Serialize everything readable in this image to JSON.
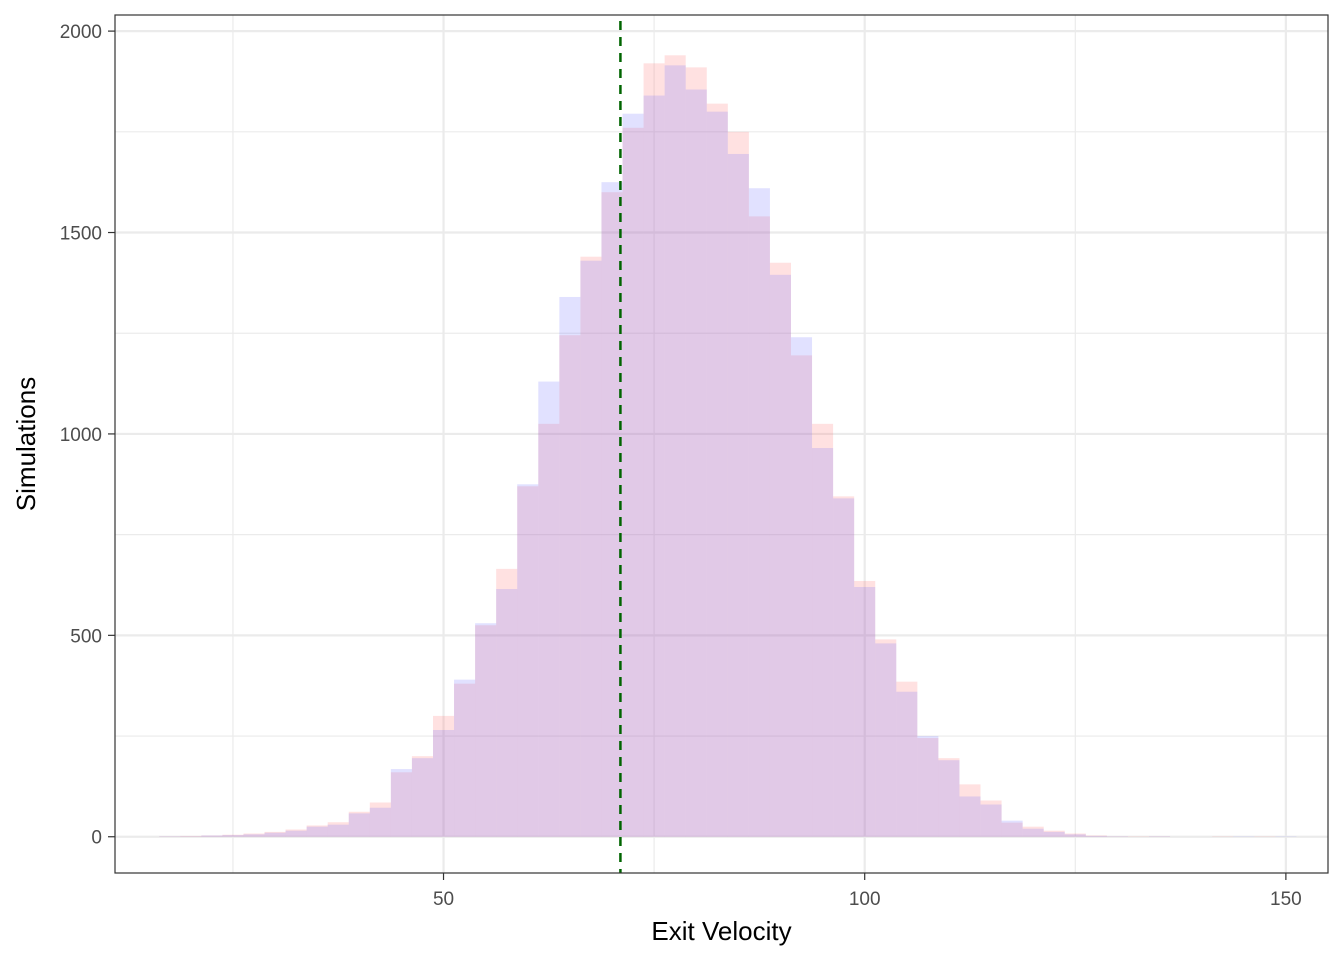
{
  "chart_data": {
    "type": "bar",
    "xlabel": "Exit Velocity",
    "ylabel": "Simulations",
    "xlim": [
      11,
      155
    ],
    "ylim": [
      -90,
      2040
    ],
    "x_ticks": [
      50,
      100,
      150
    ],
    "y_ticks": [
      0,
      500,
      1000,
      1500,
      2000
    ],
    "minor_x_ticks": [
      25,
      75,
      125
    ],
    "minor_y_ticks": [
      250,
      750,
      1250,
      1750
    ],
    "grid": true,
    "legend": "none",
    "reference_line": {
      "x": 71,
      "style": "dashed",
      "color": "#006400"
    },
    "bins": [
      17.5,
      20,
      22.5,
      25,
      27.5,
      30,
      32.5,
      35,
      37.5,
      40,
      42.5,
      45,
      47.5,
      50,
      52.5,
      55,
      57.5,
      60,
      62.5,
      65,
      67.5,
      70,
      72.5,
      75,
      77.5,
      80,
      82.5,
      85,
      87.5,
      90,
      92.5,
      95,
      97.5,
      100,
      102.5,
      105,
      107.5,
      110,
      112.5,
      115,
      117.5,
      120,
      122.5,
      125,
      127.5,
      130,
      132.5,
      135,
      137.5,
      140,
      142.5,
      145,
      147.5,
      150
    ],
    "bin_width": 2.5,
    "series": [
      {
        "color": "#ff6a6a",
        "opacity": 0.2,
        "values": [
          1,
          2,
          3,
          5,
          8,
          12,
          18,
          28,
          36,
          62,
          85,
          160,
          200,
          300,
          380,
          525,
          665,
          870,
          1025,
          1245,
          1440,
          1600,
          1760,
          1920,
          1940,
          1910,
          1820,
          1750,
          1540,
          1425,
          1195,
          1025,
          845,
          635,
          490,
          385,
          245,
          195,
          130,
          90,
          35,
          25,
          15,
          8,
          3,
          1,
          1,
          1,
          0,
          0,
          1,
          0,
          1,
          0
        ]
      },
      {
        "color": "#6a6aff",
        "opacity": 0.2,
        "values": [
          1,
          1,
          3,
          4,
          6,
          10,
          15,
          25,
          30,
          58,
          72,
          168,
          195,
          265,
          390,
          530,
          615,
          875,
          1130,
          1340,
          1430,
          1625,
          1795,
          1840,
          1915,
          1855,
          1800,
          1695,
          1610,
          1395,
          1240,
          965,
          840,
          620,
          480,
          360,
          250,
          190,
          100,
          80,
          40,
          20,
          12,
          6,
          2,
          1,
          0,
          1,
          0,
          0,
          0,
          1,
          0,
          1
        ]
      }
    ]
  }
}
